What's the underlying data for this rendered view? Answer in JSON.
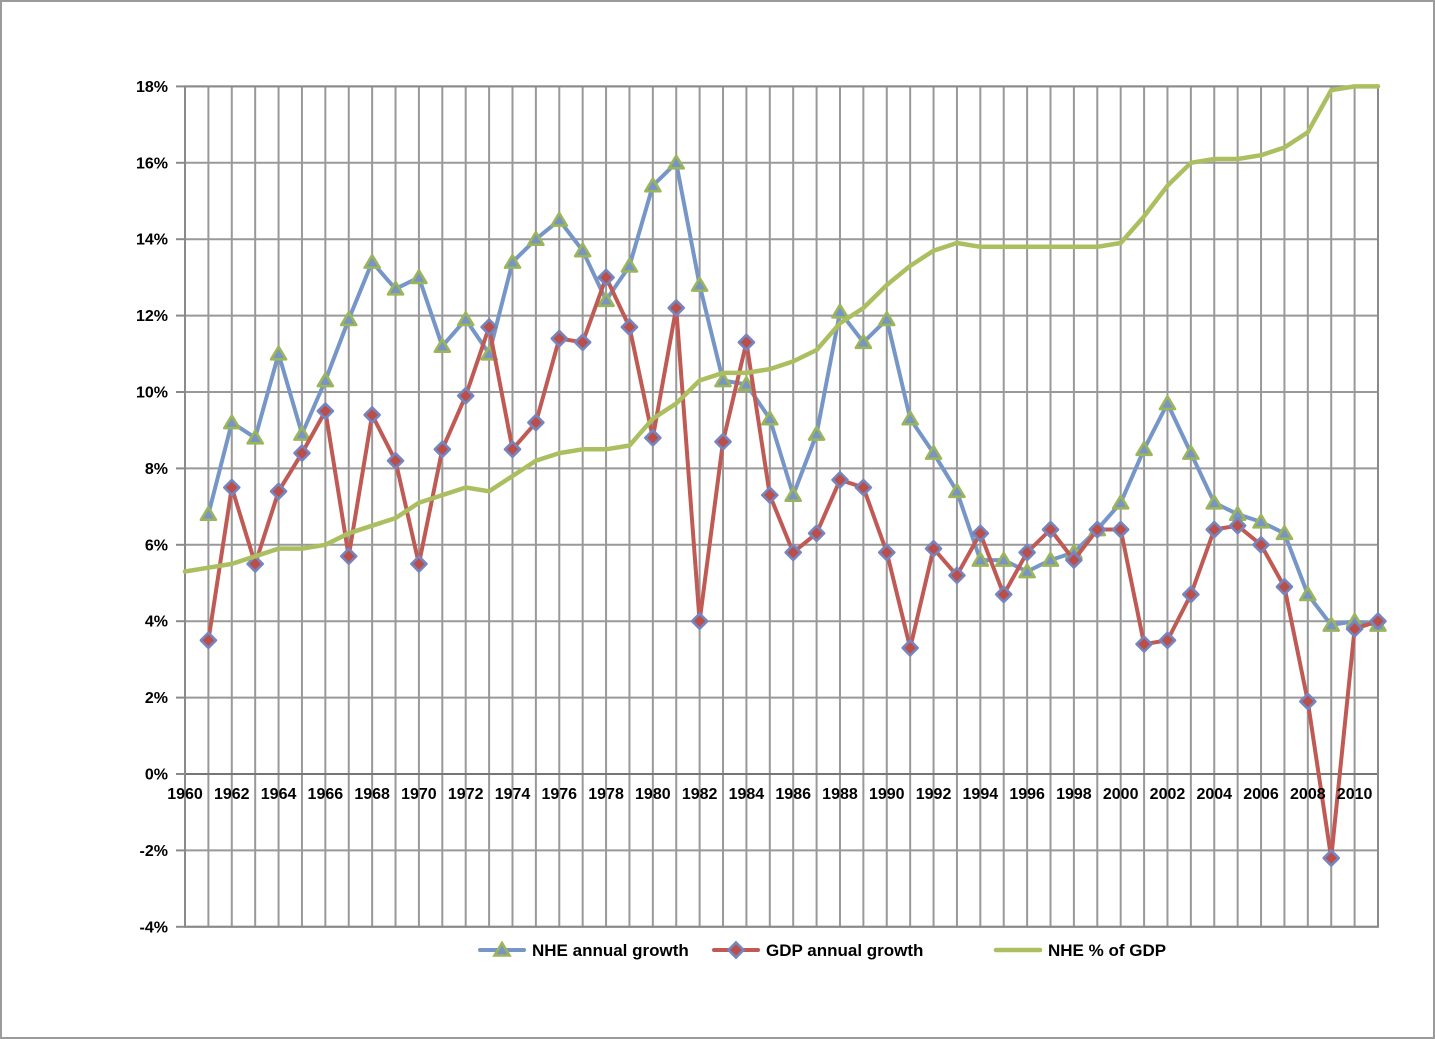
{
  "frame": {
    "background": "#ffffff",
    "border_color": "#9b9b9b"
  },
  "chart_data": {
    "type": "line",
    "title": "",
    "xlabel": "",
    "ylabel": "",
    "x": [
      1960,
      1961,
      1962,
      1963,
      1964,
      1965,
      1966,
      1967,
      1968,
      1969,
      1970,
      1971,
      1972,
      1973,
      1974,
      1975,
      1976,
      1977,
      1978,
      1979,
      1980,
      1981,
      1982,
      1983,
      1984,
      1985,
      1986,
      1987,
      1988,
      1989,
      1990,
      1991,
      1992,
      1993,
      1994,
      1995,
      1996,
      1997,
      1998,
      1999,
      2000,
      2001,
      2002,
      2003,
      2004,
      2005,
      2006,
      2007,
      2008,
      2009,
      2010,
      2011
    ],
    "x_tick_step": 2,
    "x_tick_labels": [
      "1960",
      "1962",
      "1964",
      "1966",
      "1968",
      "1970",
      "1972",
      "1974",
      "1976",
      "1978",
      "1980",
      "1982",
      "1984",
      "1986",
      "1988",
      "1990",
      "1992",
      "1994",
      "1996",
      "1998",
      "2000",
      "2002",
      "2004",
      "2006",
      "2008",
      "2010"
    ],
    "y_axis": {
      "min": -4,
      "max": 18,
      "step": 2,
      "unit": "%",
      "tick_labels": [
        "-4%",
        "-2%",
        "0%",
        "2%",
        "4%",
        "6%",
        "8%",
        "10%",
        "12%",
        "14%",
        "16%",
        "18%"
      ]
    },
    "grid": {
      "vertical": true,
      "horizontal": true,
      "color": "#999999"
    },
    "axis_border_color": "#8a8a8a",
    "zero_axis_color": "#767676",
    "legend_position": "bottom",
    "series": [
      {
        "name": "NHE annual growth",
        "color": "#7596C7",
        "marker": "triangle",
        "marker_fill": "#7794C5",
        "marker_stroke": "#9BB55B",
        "values": [
          null,
          6.8,
          9.2,
          8.8,
          11.0,
          8.9,
          10.3,
          11.9,
          13.4,
          12.7,
          13.0,
          11.2,
          11.9,
          11.0,
          13.4,
          14.0,
          14.5,
          13.7,
          12.4,
          13.3,
          15.4,
          16.0,
          12.8,
          10.3,
          10.2,
          9.3,
          7.3,
          8.9,
          12.1,
          11.3,
          11.9,
          9.3,
          8.4,
          7.4,
          5.6,
          5.6,
          5.3,
          5.6,
          5.8,
          6.4,
          7.1,
          8.5,
          9.7,
          8.4,
          7.1,
          6.8,
          6.6,
          6.3,
          4.7,
          3.9,
          4.0,
          3.9
        ]
      },
      {
        "name": "GDP annual growth",
        "color": "#C05A55",
        "marker": "diamond",
        "marker_fill": "#BC4E49",
        "marker_stroke": "#7585BF",
        "values": [
          null,
          3.5,
          7.5,
          5.5,
          7.4,
          8.4,
          9.5,
          5.7,
          9.4,
          8.2,
          5.5,
          8.5,
          9.9,
          11.7,
          8.5,
          9.2,
          11.4,
          11.3,
          13.0,
          11.7,
          8.8,
          12.2,
          4.0,
          8.7,
          11.3,
          7.3,
          5.8,
          6.3,
          7.7,
          7.5,
          5.8,
          3.3,
          5.9,
          5.2,
          6.3,
          4.7,
          5.8,
          6.4,
          5.6,
          6.4,
          6.4,
          3.4,
          3.5,
          4.7,
          6.4,
          6.5,
          6.0,
          4.9,
          1.9,
          -2.2,
          3.8,
          4.0
        ]
      },
      {
        "name": "NHE % of GDP",
        "color": "#ABBF60",
        "marker": "none",
        "values": [
          5.3,
          5.4,
          5.5,
          5.7,
          5.9,
          5.9,
          6.0,
          6.3,
          6.5,
          6.7,
          7.1,
          7.3,
          7.5,
          7.4,
          7.8,
          8.2,
          8.4,
          8.5,
          8.5,
          8.6,
          9.3,
          9.7,
          10.3,
          10.5,
          10.5,
          10.6,
          10.8,
          11.1,
          11.8,
          12.2,
          12.8,
          13.3,
          13.7,
          13.9,
          13.8,
          13.8,
          13.8,
          13.8,
          13.8,
          13.8,
          13.9,
          14.6,
          15.4,
          16.0,
          16.1,
          16.1,
          16.2,
          16.4,
          16.8,
          17.9,
          18.0,
          18.0
        ]
      }
    ]
  }
}
